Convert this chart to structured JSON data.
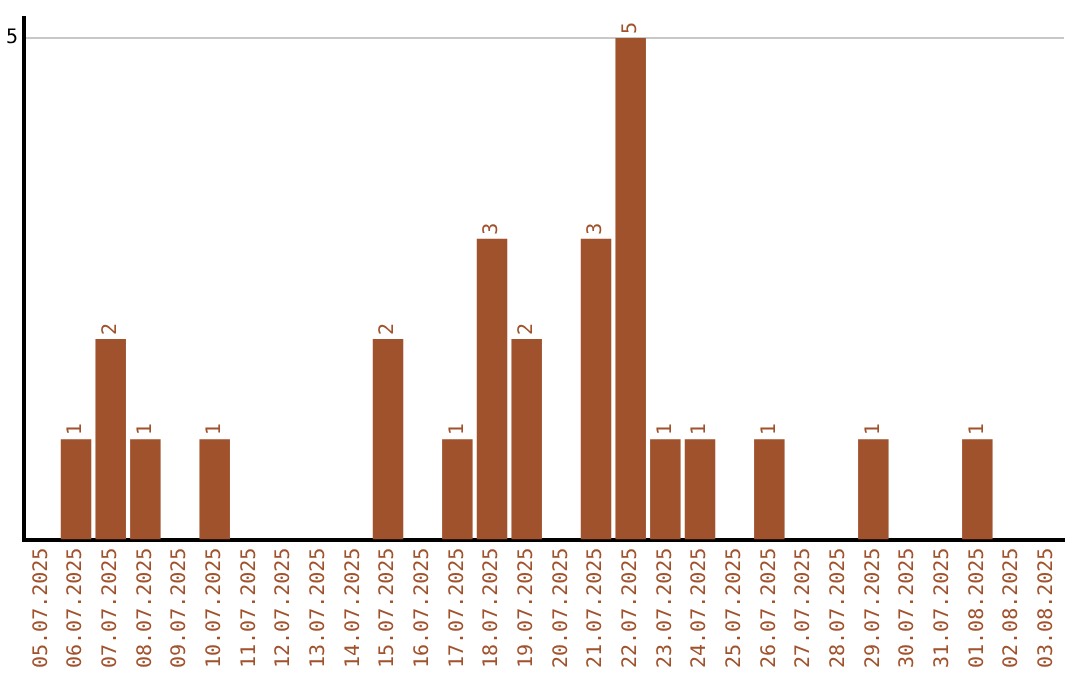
{
  "chart_data": {
    "type": "bar",
    "categories": [
      "05.07.2025",
      "06.07.2025",
      "07.07.2025",
      "08.07.2025",
      "09.07.2025",
      "10.07.2025",
      "11.07.2025",
      "12.07.2025",
      "13.07.2025",
      "14.07.2025",
      "15.07.2025",
      "16.07.2025",
      "17.07.2025",
      "18.07.2025",
      "19.07.2025",
      "20.07.2025",
      "21.07.2025",
      "22.07.2025",
      "23.07.2025",
      "24.07.2025",
      "25.07.2025",
      "26.07.2025",
      "27.07.2025",
      "28.07.2025",
      "29.07.2025",
      "30.07.2025",
      "31.07.2025",
      "01.08.2025",
      "02.08.2025",
      "03.08.2025"
    ],
    "values": [
      0,
      1,
      2,
      1,
      0,
      1,
      0,
      0,
      0,
      0,
      2,
      0,
      1,
      3,
      2,
      0,
      3,
      5,
      1,
      1,
      0,
      1,
      0,
      0,
      1,
      0,
      0,
      1,
      0,
      0
    ],
    "value_labels": [
      null,
      "1",
      "2",
      "1",
      null,
      "1",
      null,
      null,
      null,
      null,
      "2",
      null,
      "1",
      "3",
      "2",
      null,
      "3",
      "5",
      "1",
      "1",
      null,
      "1",
      null,
      null,
      "1",
      null,
      null,
      "1",
      null,
      null
    ],
    "color": "#a0522d",
    "ylim": [
      0,
      5.2
    ],
    "yticks": [
      5
    ],
    "grid": "y",
    "legend": false
  }
}
